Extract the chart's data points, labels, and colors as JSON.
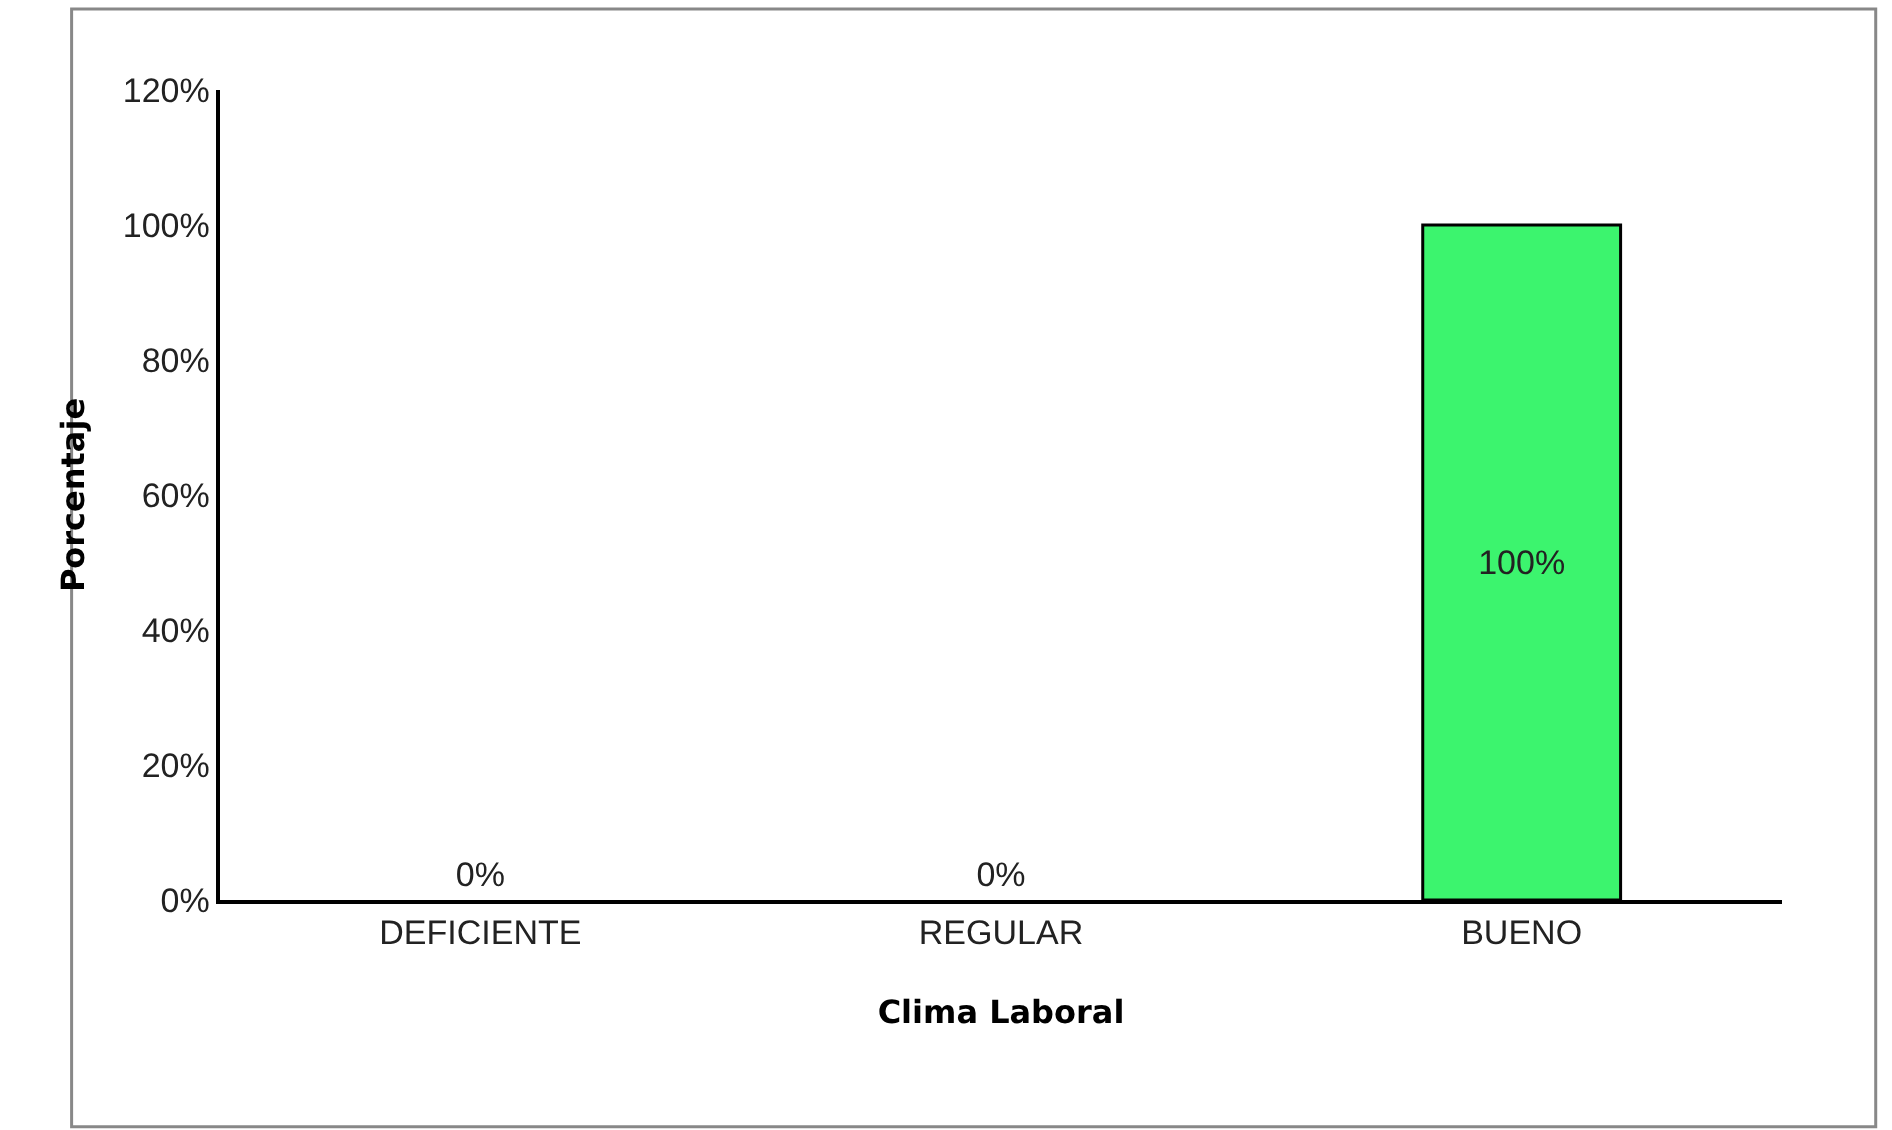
{
  "chart_data": {
    "type": "bar",
    "xlabel": "Clima Laboral",
    "ylabel": "Porcentaje",
    "categories": [
      "DEFICIENTE",
      "REGULAR",
      "BUENO"
    ],
    "values": [
      0,
      0,
      100
    ],
    "color": "#3cf46e",
    "value_labels": [
      "0%",
      "0%",
      "100%"
    ],
    "ylim": [
      0,
      120
    ],
    "yticks": [
      {
        "value": 0,
        "label": "0%"
      },
      {
        "value": 20,
        "label": "20%"
      },
      {
        "value": 40,
        "label": "40%"
      },
      {
        "value": 60,
        "label": "60%"
      },
      {
        "value": 80,
        "label": "80%"
      },
      {
        "value": 100,
        "label": "100%"
      },
      {
        "value": 120,
        "label": "120%"
      }
    ],
    "orientation": "vertical"
  }
}
